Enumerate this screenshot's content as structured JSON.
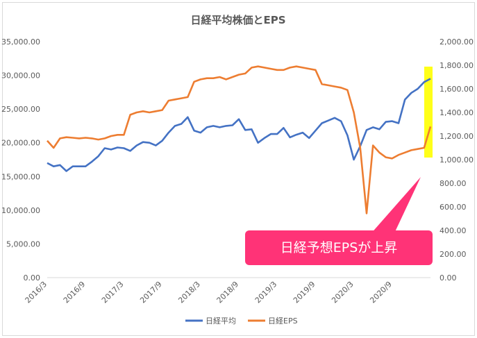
{
  "chart_data": {
    "type": "line",
    "title": "日経平均株価とEPS",
    "xlabel": "",
    "ylabel": "",
    "x_ticks": [
      "2016/3",
      "2016/9",
      "2017/3",
      "2017/9",
      "2018/3",
      "2018/9",
      "2019/3",
      "2019/9",
      "2020/3",
      "2020/9"
    ],
    "y_left_ticks": [
      "35,000.00",
      "30,000.00",
      "25,000.00",
      "20,000.00",
      "15,000.00",
      "10,000.00",
      "5,000.00",
      "0.00"
    ],
    "y_right_ticks": [
      "2,000.00",
      "1,800.00",
      "1,600.00",
      "1,400.00",
      "1,200.00",
      "1,000.00",
      "800.00",
      "600.00",
      "400.00",
      "200.00",
      "0.00"
    ],
    "ylim_left": [
      0,
      35000
    ],
    "ylim_right": [
      0,
      2000
    ],
    "x_range": [
      "2016/3",
      "2021/3"
    ],
    "legend_position": "bottom",
    "grid": false,
    "series": [
      {
        "name": "日経平均",
        "axis": "left",
        "color": "#4472c4",
        "points": [
          [
            "2016/3",
            17000
          ],
          [
            "2016/4",
            16500
          ],
          [
            "2016/5",
            16700
          ],
          [
            "2016/6",
            15800
          ],
          [
            "2016/7",
            16500
          ],
          [
            "2016/8",
            16500
          ],
          [
            "2016/9",
            16500
          ],
          [
            "2016/10",
            17200
          ],
          [
            "2016/11",
            18000
          ],
          [
            "2016/12",
            19200
          ],
          [
            "2017/1",
            19000
          ],
          [
            "2017/2",
            19300
          ],
          [
            "2017/3",
            19200
          ],
          [
            "2017/4",
            18800
          ],
          [
            "2017/5",
            19600
          ],
          [
            "2017/6",
            20100
          ],
          [
            "2017/7",
            20000
          ],
          [
            "2017/8",
            19600
          ],
          [
            "2017/9",
            20300
          ],
          [
            "2017/10",
            21500
          ],
          [
            "2017/11",
            22500
          ],
          [
            "2017/12",
            22800
          ],
          [
            "2018/1",
            23800
          ],
          [
            "2018/2",
            21800
          ],
          [
            "2018/3",
            21500
          ],
          [
            "2018/4",
            22300
          ],
          [
            "2018/5",
            22500
          ],
          [
            "2018/6",
            22300
          ],
          [
            "2018/7",
            22500
          ],
          [
            "2018/8",
            22600
          ],
          [
            "2018/9",
            23500
          ],
          [
            "2018/10",
            21900
          ],
          [
            "2018/11",
            22000
          ],
          [
            "2018/12",
            20000
          ],
          [
            "2019/1",
            20700
          ],
          [
            "2019/2",
            21300
          ],
          [
            "2019/3",
            21300
          ],
          [
            "2019/4",
            22200
          ],
          [
            "2019/5",
            20800
          ],
          [
            "2019/6",
            21200
          ],
          [
            "2019/7",
            21500
          ],
          [
            "2019/8",
            20700
          ],
          [
            "2019/9",
            21800
          ],
          [
            "2019/10",
            22900
          ],
          [
            "2019/11",
            23300
          ],
          [
            "2019/12",
            23700
          ],
          [
            "2020/1",
            23200
          ],
          [
            "2020/2",
            21100
          ],
          [
            "2020/3",
            17500
          ],
          [
            "2020/4",
            19500
          ],
          [
            "2020/5",
            21900
          ],
          [
            "2020/6",
            22300
          ],
          [
            "2020/7",
            22000
          ],
          [
            "2020/8",
            23100
          ],
          [
            "2020/9",
            23200
          ],
          [
            "2020/10",
            22900
          ],
          [
            "2020/11",
            26400
          ],
          [
            "2020/12",
            27400
          ],
          [
            "2021/1",
            28000
          ],
          [
            "2021/2",
            29000
          ],
          [
            "2021/3",
            29500
          ]
        ]
      },
      {
        "name": "日経EPS",
        "axis": "right",
        "color": "#ed7d31",
        "points": [
          [
            "2016/3",
            1160
          ],
          [
            "2016/4",
            1100
          ],
          [
            "2016/5",
            1180
          ],
          [
            "2016/6",
            1190
          ],
          [
            "2016/7",
            1185
          ],
          [
            "2016/8",
            1180
          ],
          [
            "2016/9",
            1185
          ],
          [
            "2016/10",
            1180
          ],
          [
            "2016/11",
            1170
          ],
          [
            "2016/12",
            1180
          ],
          [
            "2017/1",
            1200
          ],
          [
            "2017/2",
            1210
          ],
          [
            "2017/3",
            1210
          ],
          [
            "2017/4",
            1380
          ],
          [
            "2017/5",
            1400
          ],
          [
            "2017/6",
            1410
          ],
          [
            "2017/7",
            1400
          ],
          [
            "2017/8",
            1410
          ],
          [
            "2017/9",
            1420
          ],
          [
            "2017/10",
            1500
          ],
          [
            "2017/11",
            1510
          ],
          [
            "2017/12",
            1520
          ],
          [
            "2018/1",
            1530
          ],
          [
            "2018/2",
            1660
          ],
          [
            "2018/3",
            1680
          ],
          [
            "2018/4",
            1690
          ],
          [
            "2018/5",
            1690
          ],
          [
            "2018/6",
            1700
          ],
          [
            "2018/7",
            1680
          ],
          [
            "2018/8",
            1700
          ],
          [
            "2018/9",
            1720
          ],
          [
            "2018/10",
            1730
          ],
          [
            "2018/11",
            1780
          ],
          [
            "2018/12",
            1790
          ],
          [
            "2019/1",
            1780
          ],
          [
            "2019/2",
            1770
          ],
          [
            "2019/3",
            1760
          ],
          [
            "2019/4",
            1760
          ],
          [
            "2019/5",
            1780
          ],
          [
            "2019/6",
            1790
          ],
          [
            "2019/7",
            1780
          ],
          [
            "2019/8",
            1770
          ],
          [
            "2019/9",
            1760
          ],
          [
            "2019/10",
            1640
          ],
          [
            "2019/11",
            1630
          ],
          [
            "2019/12",
            1620
          ],
          [
            "2020/1",
            1610
          ],
          [
            "2020/2",
            1590
          ],
          [
            "2020/3",
            1400
          ],
          [
            "2020/4",
            1100
          ],
          [
            "2020/5",
            545
          ],
          [
            "2020/6",
            1120
          ],
          [
            "2020/7",
            1060
          ],
          [
            "2020/8",
            1020
          ],
          [
            "2020/9",
            1010
          ],
          [
            "2020/10",
            1040
          ],
          [
            "2020/11",
            1060
          ],
          [
            "2020/12",
            1080
          ],
          [
            "2021/1",
            1090
          ],
          [
            "2021/2",
            1100
          ],
          [
            "2021/3",
            1280
          ]
        ]
      }
    ]
  },
  "annotation": {
    "text": "日経予想EPSが上昇",
    "box_color": "#ff3377",
    "highlight_color": "#ffff00"
  }
}
